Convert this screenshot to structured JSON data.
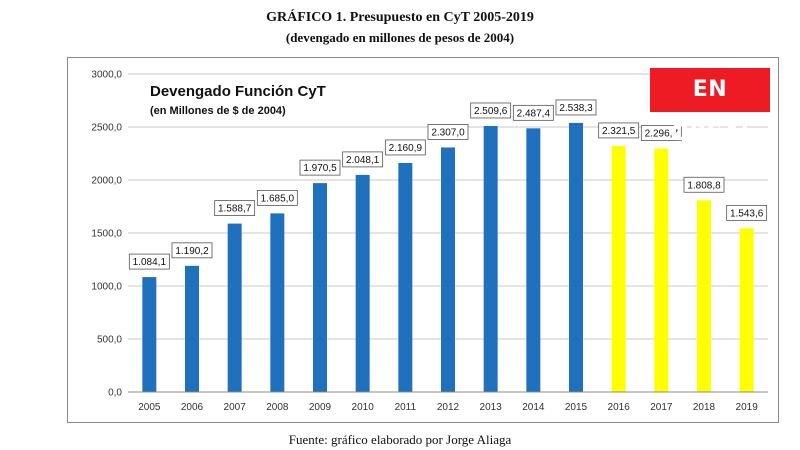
{
  "figure": {
    "title": "GRÁFICO 1. Presupuesto en CyT 2005-2019",
    "subtitle": "(devengado en millones de pesos de 2004)",
    "source": "Fuente: gráfico elaborado por Jorge Aliaga"
  },
  "badge": {
    "text": "EN ORSAI",
    "bg": "#ee1b24"
  },
  "colors": {
    "blue": "#1f71be",
    "yellow": "#ffff00"
  },
  "chart_data": {
    "type": "bar",
    "title": "Devengado Función CyT",
    "subtitle": "(en Millones de $ de 2004)",
    "xlabel": "",
    "ylabel": "",
    "ylim": [
      0,
      3000
    ],
    "yticks": [
      "0,0",
      "500,0",
      "1000,0",
      "1500,0",
      "2000,0",
      "2500,0",
      "3000,0"
    ],
    "grid": true,
    "categories": [
      "2005",
      "2006",
      "2007",
      "2008",
      "2009",
      "2010",
      "2011",
      "2012",
      "2013",
      "2014",
      "2015",
      "2016",
      "2017",
      "2018",
      "2019"
    ],
    "values": [
      1084.1,
      1190.2,
      1588.7,
      1685.0,
      1970.5,
      2048.1,
      2160.9,
      2307.0,
      2509.6,
      2487.4,
      2538.3,
      2321.5,
      2296.7,
      1808.8,
      1543.6
    ],
    "value_labels": [
      "1.084,1",
      "1.190,2",
      "1.588,7",
      "1.685,0",
      "1.970,5",
      "2.048,1",
      "2.160,9",
      "2.307,0",
      "2.509,6",
      "2.487,4",
      "2.538,3",
      "2.321,5",
      "2.296,7",
      "1.808,8",
      "1.543,6"
    ],
    "bar_colors": [
      "#1f71be",
      "#1f71be",
      "#1f71be",
      "#1f71be",
      "#1f71be",
      "#1f71be",
      "#1f71be",
      "#1f71be",
      "#1f71be",
      "#1f71be",
      "#1f71be",
      "#ffff00",
      "#ffff00",
      "#ffff00",
      "#ffff00"
    ]
  }
}
